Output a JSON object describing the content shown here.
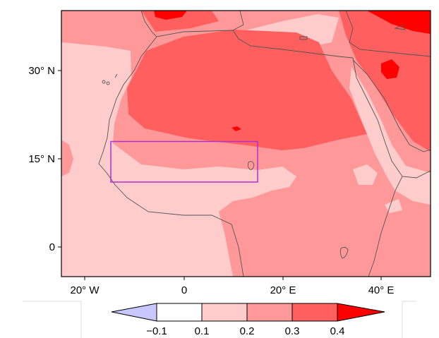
{
  "map": {
    "lon_range": [
      -25,
      50
    ],
    "lat_range": [
      -5,
      40
    ],
    "y_ticks": [
      "30° N",
      "15° N",
      "0"
    ],
    "x_ticks": [
      "20° W",
      "0",
      "20° E",
      "40° E"
    ],
    "region_box": {
      "lon": [
        -15,
        15
      ],
      "lat": [
        11,
        18
      ],
      "color": "#b030d0"
    }
  },
  "colorbar": {
    "labels": [
      "−0.1",
      "0.1",
      "0.2",
      "0.3",
      "0.4"
    ],
    "colors": {
      "below": "#c8c8ff",
      "c1": "#ffffff",
      "c2": "#ffcccc",
      "c3": "#ff9999",
      "c4": "#ff5f5f",
      "above": "#ff0000"
    }
  }
}
